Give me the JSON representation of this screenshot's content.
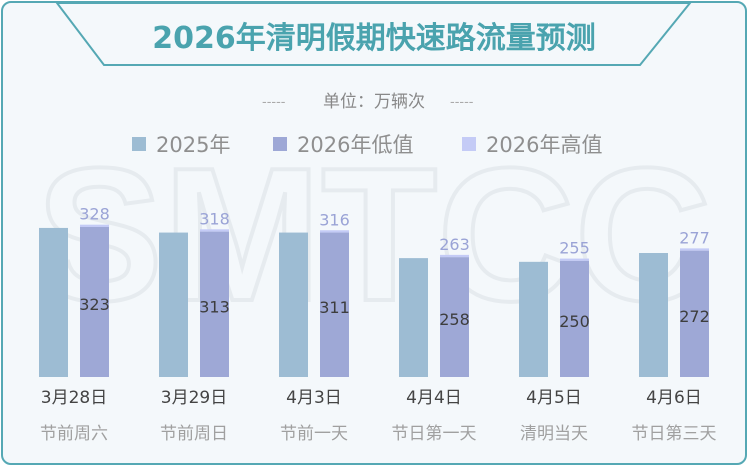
{
  "title": "2026年清明假期快速路流量预测",
  "unit_label": "单位：万辆次",
  "watermark": "SMTCC",
  "colors": {
    "border": "#55a8b4",
    "title": "#4aa3ae",
    "s2025": "#9dbcd3",
    "low2026": "#9ea8d6",
    "high2026": "#c4cbf6",
    "high_label": "#9aa3d6",
    "low_label": "#3d3d3d",
    "date_label": "#444444",
    "sub_label": "#a0a0a0"
  },
  "chart_data": {
    "type": "bar",
    "title": "2026年清明假期快速路流量预测",
    "unit": "单位：万辆次",
    "categories": [
      "3月28日",
      "3月29日",
      "4月3日",
      "4月4日",
      "4月5日",
      "4月6日"
    ],
    "sub_categories": [
      "节前周六",
      "节前周日",
      "节前一天",
      "节日第一天",
      "清明当天",
      "节日第三天"
    ],
    "series": [
      {
        "name": "2025年",
        "values": [
          321,
          311,
          311,
          256,
          248,
          267
        ]
      },
      {
        "name": "2026年低值",
        "values": [
          323,
          313,
          311,
          258,
          250,
          272
        ]
      },
      {
        "name": "2026年高值",
        "values": [
          328,
          318,
          316,
          263,
          255,
          277
        ]
      }
    ],
    "ylim": [
      0,
      330
    ],
    "grid": false,
    "legend_position": "top"
  }
}
